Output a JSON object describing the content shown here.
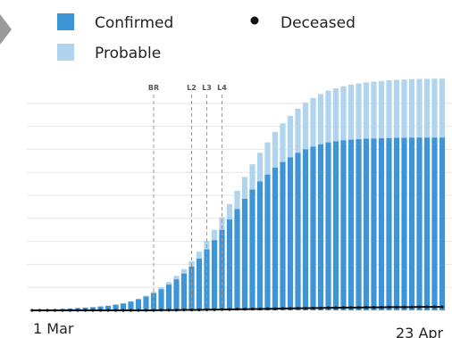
{
  "chart_data": {
    "type": "bar",
    "x_start_label": "1 Mar",
    "x_end_label": "23 Apr",
    "ylim": [
      0,
      1000
    ],
    "grid": true,
    "legend_position": "top-left",
    "colors": {
      "confirmed": "#3d95d8",
      "probable": "#b1d4ee",
      "deceased": "#111111",
      "grid": "#e6e6e6",
      "annotation": "#999999"
    },
    "legend": [
      {
        "key": "confirmed",
        "label": "Confirmed"
      },
      {
        "key": "probable",
        "label": "Probable"
      },
      {
        "key": "deceased",
        "label": "Deceased"
      }
    ],
    "annotations": [
      {
        "label": "BR",
        "day": 16
      },
      {
        "label": "L2",
        "day": 21
      },
      {
        "label": "L3",
        "day": 23
      },
      {
        "label": "L4",
        "day": 25
      }
    ],
    "series": [
      {
        "name": "Confirmed",
        "values": [
          2,
          3,
          4,
          5,
          6,
          8,
          10,
          12,
          14,
          17,
          20,
          25,
          30,
          38,
          48,
          60,
          75,
          92,
          112,
          135,
          160,
          190,
          225,
          265,
          305,
          350,
          395,
          440,
          485,
          525,
          560,
          590,
          620,
          645,
          665,
          685,
          700,
          712,
          722,
          730,
          735,
          739,
          742,
          744,
          746,
          747,
          748,
          749,
          750,
          750,
          751,
          751,
          751,
          751,
          751
        ]
      },
      {
        "name": "Probable",
        "values": [
          0,
          0,
          0,
          0,
          0,
          0,
          0,
          0,
          0,
          0,
          0,
          0,
          1,
          2,
          3,
          4,
          6,
          8,
          11,
          15,
          19,
          24,
          30,
          37,
          45,
          55,
          67,
          80,
          95,
          110,
          125,
          140,
          155,
          168,
          180,
          192,
          202,
          211,
          218,
          225,
          230,
          235,
          239,
          242,
          245,
          247,
          249,
          251,
          252,
          253,
          254,
          255,
          255,
          256,
          256
        ]
      },
      {
        "name": "Deceased",
        "values": [
          0,
          0,
          0,
          0,
          0,
          0,
          0,
          0,
          0,
          0,
          0,
          0,
          0,
          0,
          0,
          0,
          0,
          1,
          1,
          1,
          2,
          2,
          2,
          3,
          3,
          4,
          4,
          5,
          5,
          6,
          6,
          7,
          7,
          8,
          8,
          9,
          9,
          10,
          10,
          11,
          11,
          12,
          12,
          12,
          13,
          13,
          13,
          14,
          14,
          14,
          14,
          15,
          15,
          15,
          15
        ]
      }
    ]
  }
}
